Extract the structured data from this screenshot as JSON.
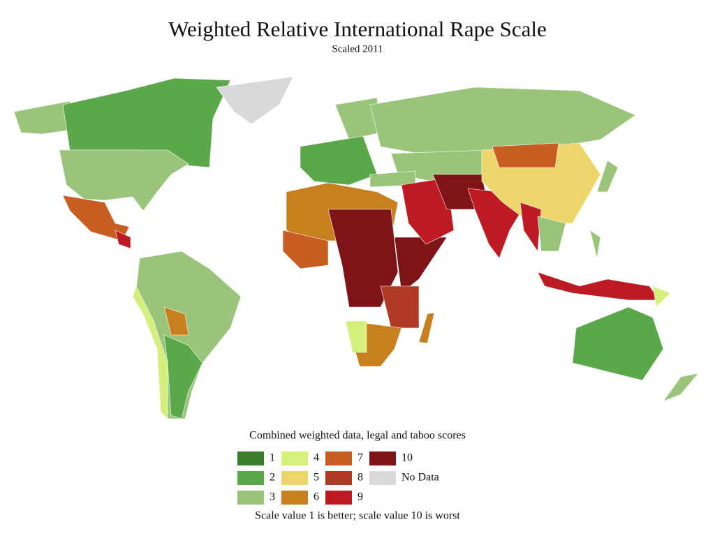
{
  "title": "Weighted Relative International Rape Scale",
  "subtitle": "Scaled 2011",
  "legend": {
    "title": "Combined weighted data, legal and taboo scores",
    "items": [
      {
        "label": "1",
        "color": "#3a7d2a"
      },
      {
        "label": "2",
        "color": "#5ba84b"
      },
      {
        "label": "3",
        "color": "#99c47a"
      },
      {
        "label": "4",
        "color": "#d4f07a"
      },
      {
        "label": "5",
        "color": "#ecd56a"
      },
      {
        "label": "6",
        "color": "#c8801f"
      },
      {
        "label": "7",
        "color": "#c85d22"
      },
      {
        "label": "8",
        "color": "#b03a26"
      },
      {
        "label": "9",
        "color": "#be1a23"
      },
      {
        "label": "10",
        "color": "#7f1418"
      },
      {
        "label": "No Data",
        "color": "#d9d9d9"
      }
    ]
  },
  "note": "Scale value 1 is better; scale value 10 is worst"
}
